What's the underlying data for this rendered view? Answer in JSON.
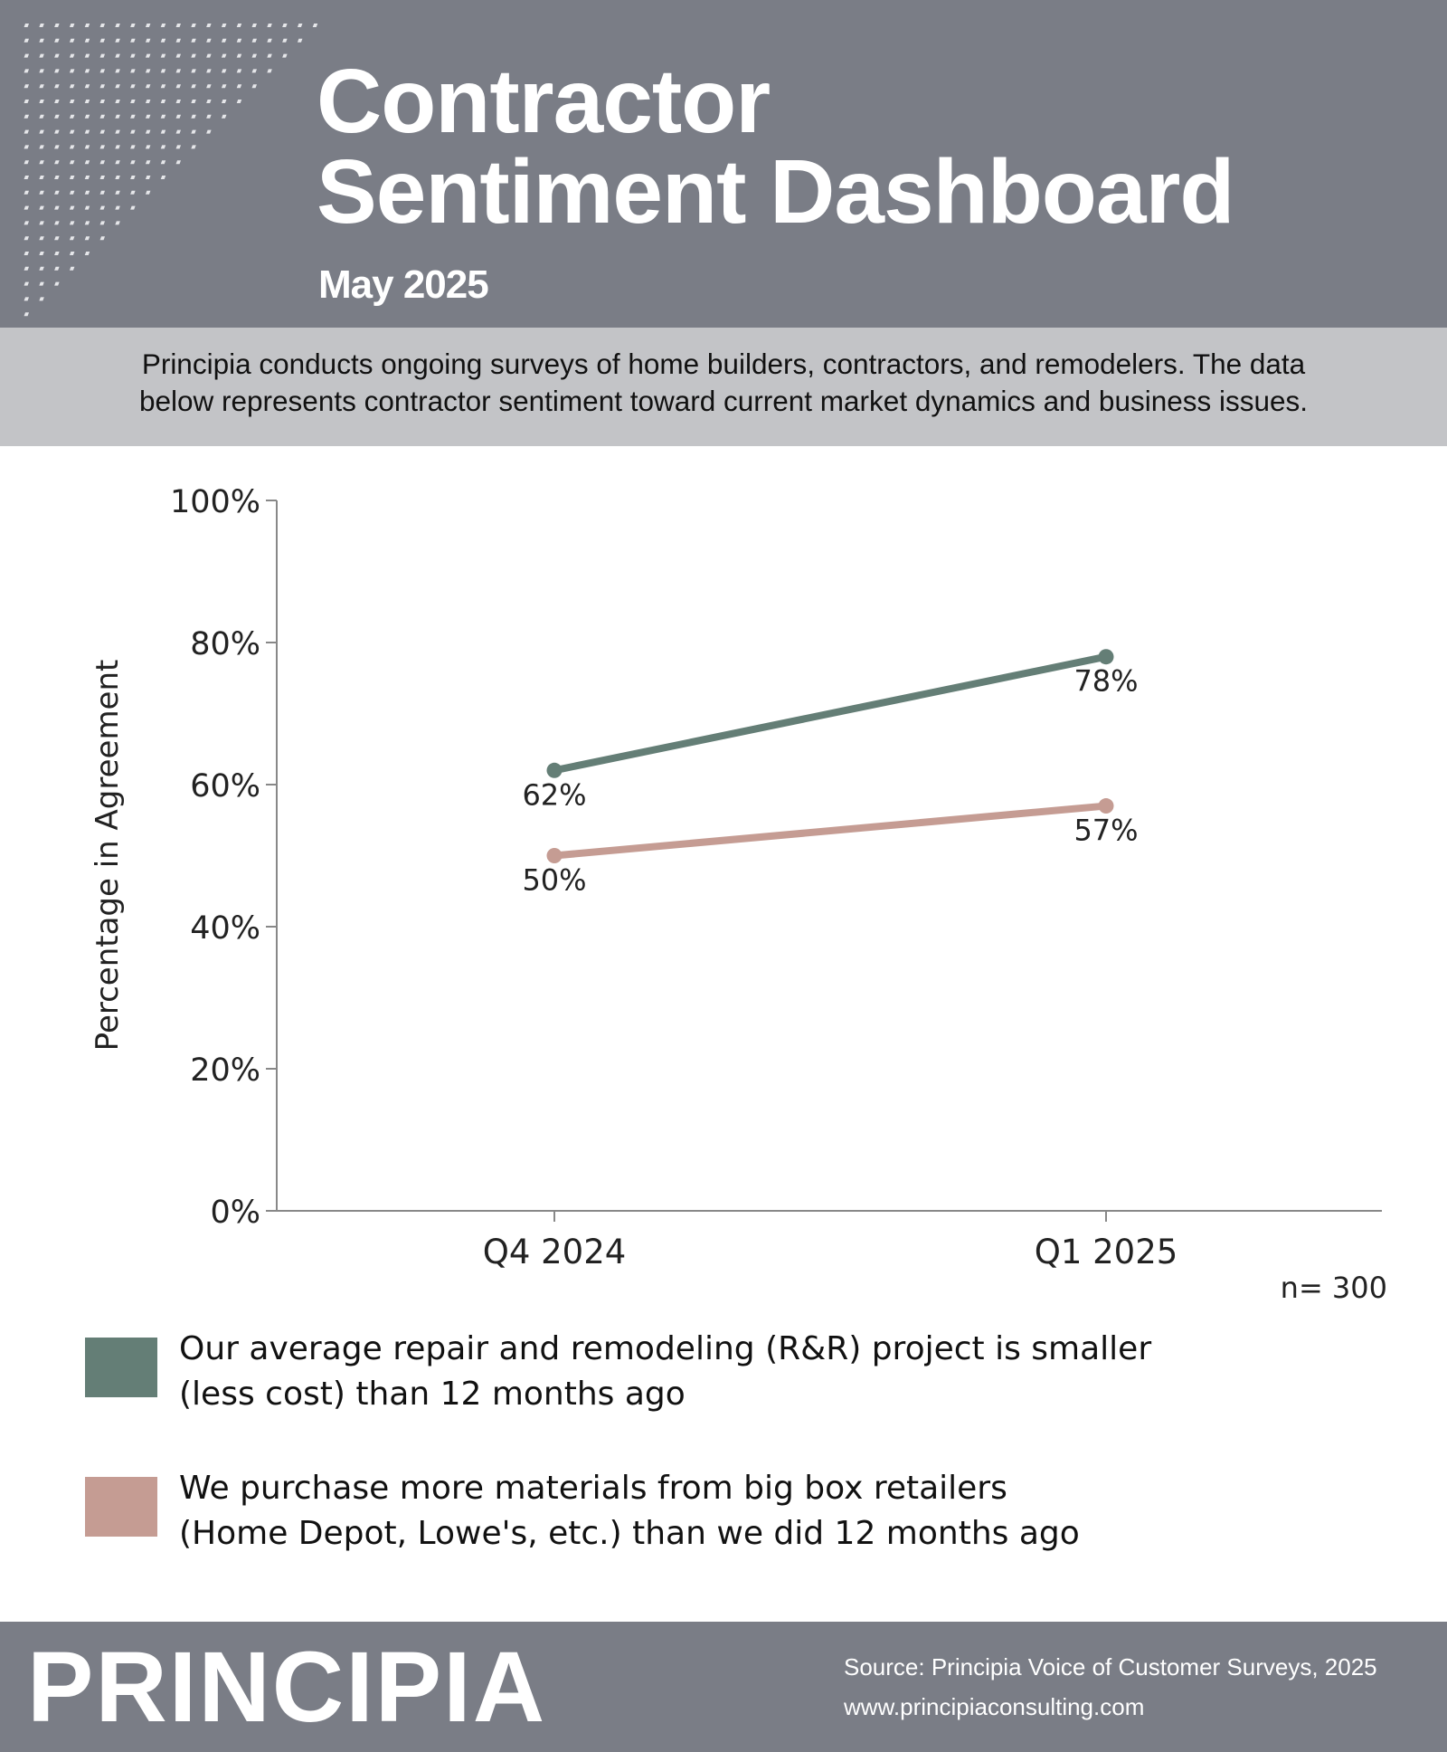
{
  "header": {
    "title_line1": "Contractor",
    "title_line2": "Sentiment Dashboard",
    "subtitle": "May 2025",
    "background_color": "#7a7d86"
  },
  "intro": {
    "line1": "Principia conducts ongoing surveys of home builders, contractors, and remodelers. The data",
    "line2": "below represents contractor sentiment toward current market dynamics and business issues."
  },
  "chart_data": {
    "type": "line",
    "categories": [
      "Q4 2024",
      "Q1 2025"
    ],
    "series": [
      {
        "name": "Our average repair and remodeling (R&R) project is smaller (less cost) than 12 months ago",
        "values": [
          62,
          78
        ],
        "labels": [
          "62%",
          "78%"
        ],
        "color": "#647e76"
      },
      {
        "name": "We purchase more materials from big box retailers (Home Depot, Lowe's, etc.) than we did 12 months ago",
        "values": [
          50,
          57
        ],
        "labels": [
          "50%",
          "57%"
        ],
        "color": "#c59c93"
      }
    ],
    "ylabel": "Percentage in Agreement",
    "ylim": [
      0,
      100
    ],
    "yticks": [
      "0%",
      "20%",
      "40%",
      "60%",
      "80%",
      "100%"
    ],
    "note": "n= 300",
    "grid": false,
    "legend_placement": "bottom"
  },
  "legend": [
    {
      "line1": "Our average repair and remodeling (R&R) project is smaller",
      "line2": "(less cost) than 12 months ago",
      "color": "#647e76"
    },
    {
      "line1": "We purchase more materials from big box retailers",
      "line2": "(Home Depot, Lowe's, etc.) than we did 12 months ago",
      "color": "#c59c93"
    }
  ],
  "footer": {
    "logo": "PRINCIPIA",
    "source": "Source: Principia Voice of Customer Surveys, 2025",
    "website": "www.principiaconsulting.com"
  }
}
